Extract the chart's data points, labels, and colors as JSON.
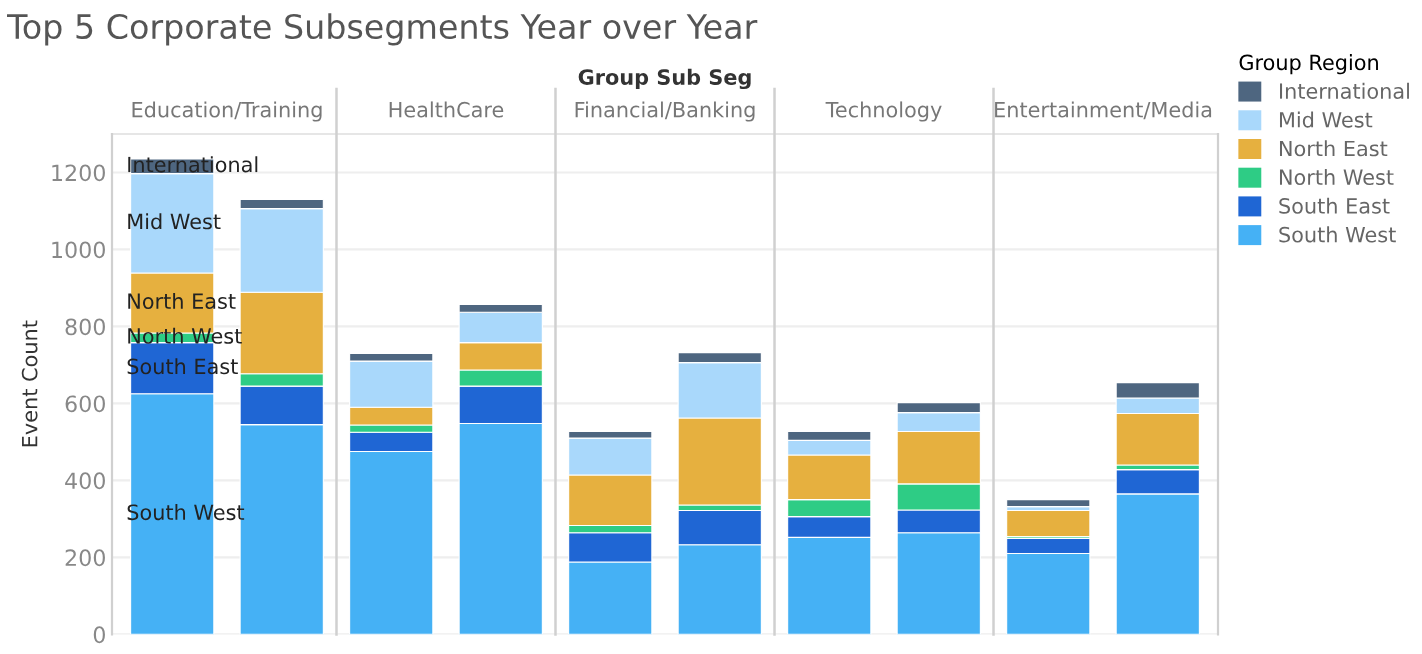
{
  "chart_data": {
    "type": "bar",
    "stacked": true,
    "title": "Top 5 Corporate Subsegments Year over Year",
    "ylabel": "Event Count",
    "categories": [
      null,
      null,
      null,
      null,
      null,
      null,
      null,
      null,
      null,
      null
    ],
    "ylim": [
      0,
      1300
    ],
    "yticks": [
      0,
      200,
      400,
      600,
      800,
      1000,
      1200
    ],
    "grid": "y",
    "tick_labels": "y",
    "legend": "right",
    "legend_title": "Group Region",
    "annotations": [
      "Group Sub Seg",
      "Education/Training",
      "HealthCare",
      "Financial/Banking",
      "Technology",
      "Entertainment/Media"
    ],
    "series": [
      {
        "name": "South West",
        "color": "#45b1f5",
        "values": [
          625,
          545,
          475,
          548,
          188,
          233,
          252,
          264,
          210,
          365
        ]
      },
      {
        "name": "South East",
        "color": "#1f66d4",
        "values": [
          133,
          100,
          50,
          97,
          76,
          89,
          54,
          59,
          39,
          63
        ]
      },
      {
        "name": "North West",
        "color": "#2ecc85",
        "values": [
          25,
          32,
          19,
          42,
          19,
          14,
          44,
          68,
          5,
          12
        ]
      },
      {
        "name": "North East",
        "color": "#e6b03f",
        "values": [
          156,
          212,
          46,
          71,
          131,
          226,
          116,
          136,
          68,
          134
        ]
      },
      {
        "name": "Mid West",
        "color": "#a9d8fb",
        "values": [
          258,
          217,
          120,
          79,
          96,
          144,
          38,
          49,
          10,
          40
        ]
      },
      {
        "name": "International",
        "color": "#4e6680",
        "values": [
          38,
          24,
          20,
          20,
          17,
          26,
          23,
          26,
          18,
          40
        ]
      }
    ]
  }
}
